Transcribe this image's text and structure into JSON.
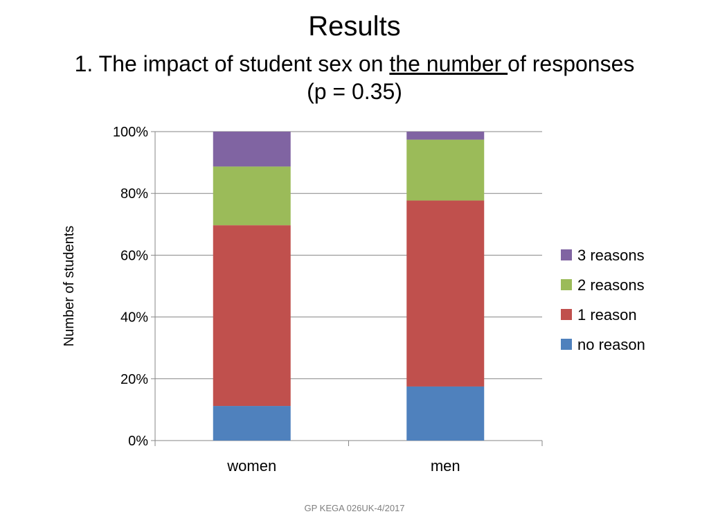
{
  "slide": {
    "title": "Results",
    "subtitle_pre": "1. The impact of student sex on ",
    "subtitle_underlined": "the number ",
    "subtitle_post": "of responses",
    "subtitle_line2": "(p = 0.35)",
    "footer": "GP KEGA 026UK-4/2017"
  },
  "chart_data": {
    "type": "bar",
    "stacked": true,
    "categories": [
      "women",
      "men"
    ],
    "ylabel": "Number of students",
    "xlabel": "",
    "ylim": [
      0,
      100
    ],
    "yticks": [
      0,
      20,
      40,
      60,
      80,
      100
    ],
    "ytick_labels": [
      "0%",
      "20%",
      "40%",
      "60%",
      "80%",
      "100%"
    ],
    "grid": true,
    "legend_position": "right",
    "series": [
      {
        "name": "no reason",
        "color": "#4f81bd",
        "values": [
          11.2,
          17.5
        ]
      },
      {
        "name": "1 reason",
        "color": "#c0504d",
        "values": [
          58.5,
          60.2
        ]
      },
      {
        "name": "2 reasons",
        "color": "#9bbb59",
        "values": [
          19.0,
          19.7
        ]
      },
      {
        "name": "3 reasons",
        "color": "#8064a2",
        "values": [
          11.3,
          2.6
        ]
      }
    ]
  }
}
